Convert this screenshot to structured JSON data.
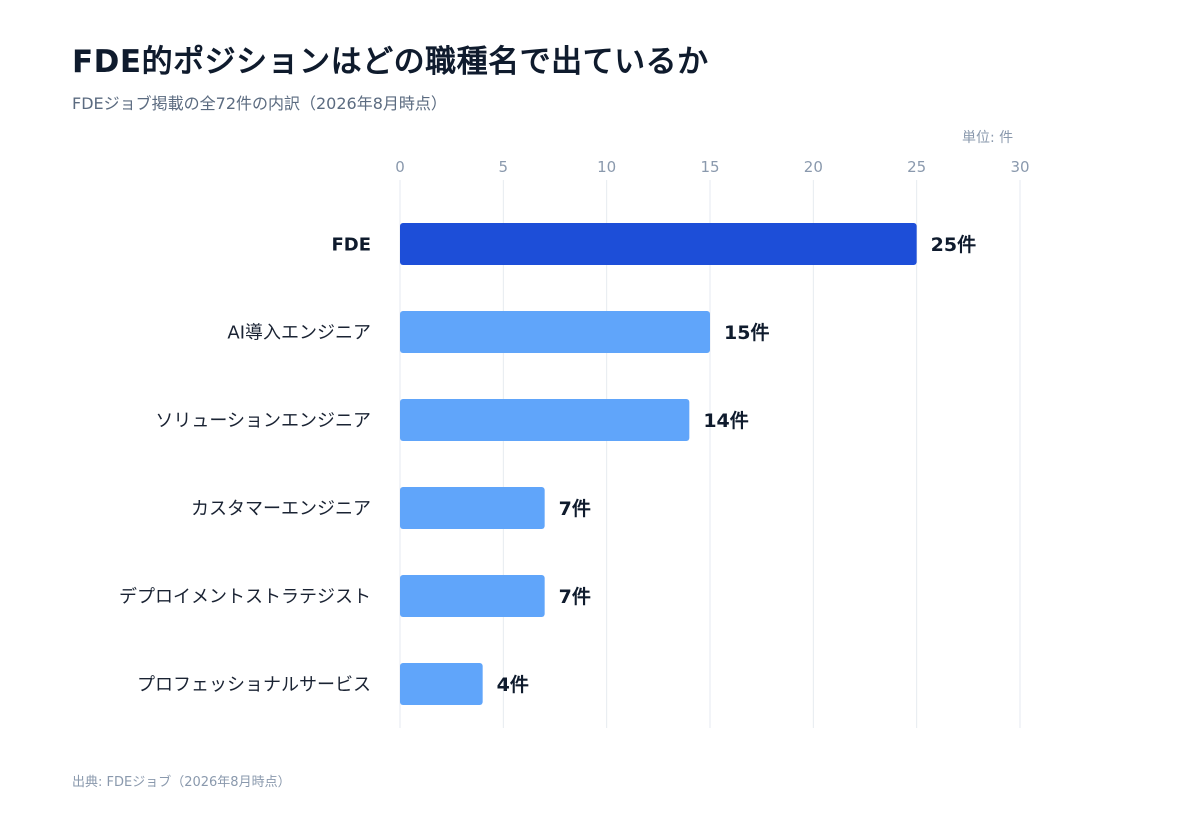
{
  "title": "FDE的ポジションはどの職種名で出ているか",
  "subtitle": "FDEジョブ掲載の全72件の内訳（2026年8月時点）",
  "unit_label": "単位: 件",
  "source": "出典: FDEジョブ（2026年8月時点）",
  "value_suffix": "件",
  "colors": {
    "highlight": "#1d4ed8",
    "bar": "#60a5fa",
    "grid": "#e6eaf0"
  },
  "chart_data": {
    "type": "bar",
    "orientation": "horizontal",
    "categories": [
      "FDE",
      "AI導入エンジニア",
      "ソリューションエンジニア",
      "カスタマーエンジニア",
      "デプロイメントストラテジスト",
      "プロフェッショナルサービス"
    ],
    "values": [
      25,
      15,
      14,
      7,
      7,
      4
    ],
    "highlight_index": 0,
    "xlim": [
      0,
      30
    ],
    "xticks": [
      0,
      5,
      10,
      15,
      20,
      25,
      30
    ],
    "grid": true,
    "legend": "none"
  }
}
